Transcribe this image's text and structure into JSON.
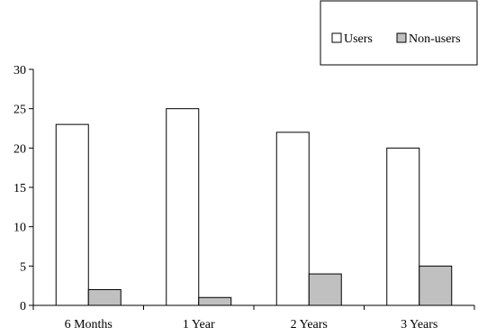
{
  "chart_data": {
    "type": "bar",
    "title": "",
    "xlabel": "",
    "ylabel": "",
    "categories": [
      "6 Months",
      "1 Year",
      "2 Years",
      "3 Years"
    ],
    "series": [
      {
        "name": "Users",
        "values": [
          23,
          25,
          22,
          20
        ],
        "color": "#ffffff"
      },
      {
        "name": "Non-users",
        "values": [
          2,
          1,
          4,
          5
        ],
        "color": "#c0c0c0"
      }
    ],
    "ylim": [
      0,
      30
    ],
    "yticks": [
      "0",
      "5",
      "10",
      "15",
      "20",
      "25",
      "30"
    ],
    "grid": false,
    "legend_position": "top-right"
  }
}
